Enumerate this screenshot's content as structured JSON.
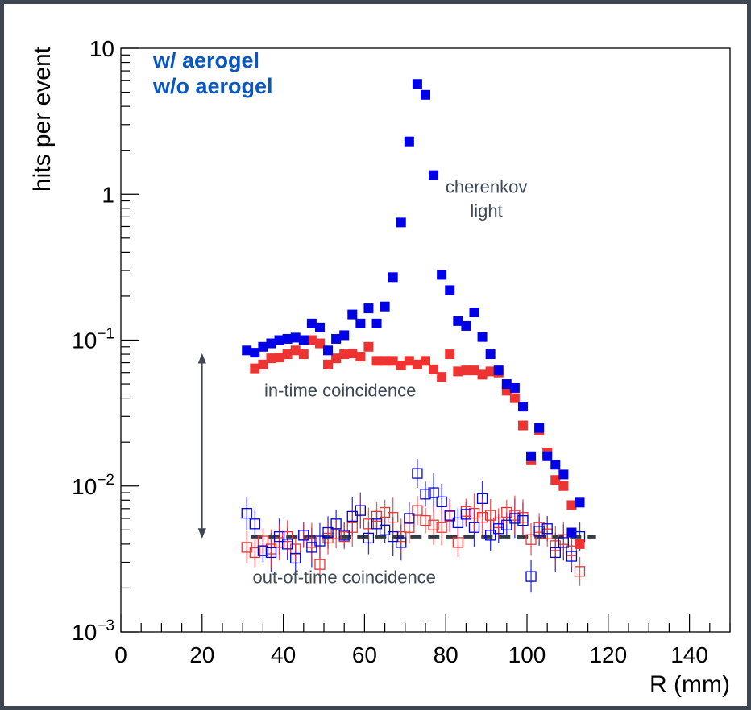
{
  "colors": {
    "with_aerogel": "#0000e6",
    "without_aerogel": "#ee3333",
    "legend_text": "#0a57c2",
    "annotation_text": "#3e4a58",
    "frame": "#3e4652",
    "arrow": "#3e4652",
    "dashed_line": "#333b44"
  },
  "chart_data": {
    "type": "scatter",
    "xlabel": "R (mm)",
    "ylabel": "hits per event",
    "xlim": [
      0,
      150
    ],
    "ylim": [
      0.001,
      10
    ],
    "yscale": "log",
    "grid": false,
    "legend_position": "top-left",
    "x_ticks": [
      0,
      20,
      40,
      60,
      80,
      100,
      120,
      140
    ],
    "x_tick_labels": [
      "0",
      "20",
      "40",
      "60",
      "80",
      "100",
      "120",
      "140"
    ],
    "y_ticks": [
      0.001,
      0.01,
      0.1,
      1,
      10
    ],
    "y_tick_labels": [
      {
        "base": "10",
        "exp": "−3"
      },
      {
        "base": "10",
        "exp": "−2"
      },
      {
        "base": "10",
        "exp": "−1"
      },
      {
        "base": "1",
        "exp": ""
      },
      {
        "base": "10",
        "exp": ""
      }
    ],
    "series": [
      {
        "name": "w/ aerogel",
        "marker": "filled-square",
        "color": "#0000e6",
        "x": [
          31,
          33,
          35,
          37,
          39,
          41,
          43,
          45,
          47,
          49,
          51,
          53,
          55,
          57,
          59,
          61,
          63,
          65,
          67,
          69,
          71,
          73,
          75,
          77,
          79,
          81,
          83,
          85,
          87,
          89,
          91,
          93,
          95,
          97,
          99,
          101,
          103,
          105,
          107,
          109,
          111,
          113
        ],
        "y": [
          0.085,
          0.082,
          0.09,
          0.095,
          0.1,
          0.102,
          0.104,
          0.1,
          0.13,
          0.122,
          0.085,
          0.102,
          0.108,
          0.15,
          0.13,
          0.165,
          0.13,
          0.17,
          0.27,
          0.64,
          2.3,
          5.7,
          4.8,
          1.35,
          0.28,
          0.22,
          0.135,
          0.125,
          0.155,
          0.105,
          0.08,
          0.062,
          0.05,
          0.047,
          0.035,
          0.016,
          0.025,
          0.016,
          0.014,
          0.012,
          0.0048,
          0.0077
        ]
      },
      {
        "name": "w/o aerogel",
        "marker": "filled-square",
        "color": "#ee3333",
        "x": [
          33,
          35,
          37,
          39,
          41,
          43,
          45,
          47,
          49,
          51,
          53,
          55,
          57,
          59,
          61,
          63,
          65,
          67,
          69,
          71,
          73,
          75,
          77,
          79,
          81,
          83,
          85,
          87,
          89,
          91,
          93,
          95,
          97,
          99,
          101,
          103,
          105,
          107,
          109,
          111,
          113
        ],
        "y": [
          0.064,
          0.068,
          0.075,
          0.076,
          0.08,
          0.085,
          0.08,
          0.1,
          0.095,
          0.068,
          0.075,
          0.08,
          0.081,
          0.077,
          0.09,
          0.072,
          0.072,
          0.072,
          0.067,
          0.072,
          0.068,
          0.072,
          0.063,
          0.056,
          0.08,
          0.061,
          0.062,
          0.062,
          0.058,
          0.061,
          0.06,
          0.045,
          0.04,
          0.026,
          0.015,
          0.024,
          0.017,
          0.011,
          0.01,
          0.0074,
          0.004
        ]
      },
      {
        "name": "w/ aerogel out-of-time",
        "marker": "open-square",
        "color": "#0000e6",
        "x": [
          31,
          33,
          35,
          37,
          39,
          41,
          43,
          45,
          47,
          49,
          51,
          53,
          55,
          57,
          59,
          61,
          63,
          65,
          67,
          69,
          71,
          73,
          75,
          77,
          79,
          81,
          83,
          85,
          87,
          89,
          91,
          93,
          95,
          97,
          99,
          101,
          103,
          105,
          107,
          109,
          111,
          113
        ],
        "y": [
          0.0065,
          0.0055,
          0.0036,
          0.0035,
          0.0045,
          0.004,
          0.0032,
          0.0046,
          0.0038,
          0.0042,
          0.0048,
          0.0055,
          0.0046,
          0.0062,
          0.0068,
          0.0044,
          0.0055,
          0.005,
          0.0045,
          0.0041,
          0.006,
          0.0122,
          0.0088,
          0.009,
          0.0078,
          0.0063,
          0.0056,
          0.0064,
          0.0052,
          0.0082,
          0.0046,
          0.0051,
          0.0054,
          0.006,
          0.0058,
          0.0024,
          0.0049,
          0.0051,
          0.0035,
          0.0041,
          0.0033,
          0.0045
        ]
      },
      {
        "name": "w/o aerogel out-of-time",
        "marker": "open-square",
        "color": "#ee3333",
        "x": [
          31,
          33,
          35,
          37,
          39,
          41,
          43,
          45,
          47,
          49,
          51,
          53,
          55,
          57,
          59,
          61,
          63,
          65,
          67,
          69,
          71,
          73,
          75,
          77,
          79,
          81,
          83,
          85,
          87,
          89,
          91,
          93,
          95,
          97,
          99,
          101,
          103,
          105,
          107,
          109,
          111,
          113
        ],
        "y": [
          0.0038,
          0.0035,
          0.0042,
          0.0037,
          0.0041,
          0.0045,
          0.0037,
          0.0046,
          0.0041,
          0.0029,
          0.0044,
          0.0047,
          0.0045,
          0.0052,
          0.0068,
          0.0055,
          0.0062,
          0.0066,
          0.0061,
          0.0045,
          0.0052,
          0.0068,
          0.0058,
          0.0054,
          0.0052,
          0.0062,
          0.0041,
          0.0067,
          0.0065,
          0.0061,
          0.0063,
          0.0056,
          0.0066,
          0.0063,
          0.0061,
          0.0043,
          0.0052,
          0.0047,
          0.0039,
          0.0043,
          0.0036,
          0.0026
        ]
      }
    ],
    "background_level": {
      "x": [
        32,
        117
      ],
      "y": 0.0045,
      "style": "dashed"
    },
    "range_arrow": {
      "x": 20,
      "y_from": 0.0045,
      "y_to": 0.085
    },
    "legend": [
      {
        "label": "w/ aerogel"
      },
      {
        "label": "w/o aerogel"
      }
    ],
    "annotations": [
      {
        "text_lines": [
          "cherenkov",
          "light"
        ],
        "x": 90,
        "y": 1.0
      },
      {
        "text_lines": [
          "in-time coincidence"
        ],
        "x": 54,
        "y": 0.04
      },
      {
        "text_lines": [
          "out-of-time coincidence"
        ],
        "x": 55,
        "y": 0.0021
      }
    ]
  }
}
